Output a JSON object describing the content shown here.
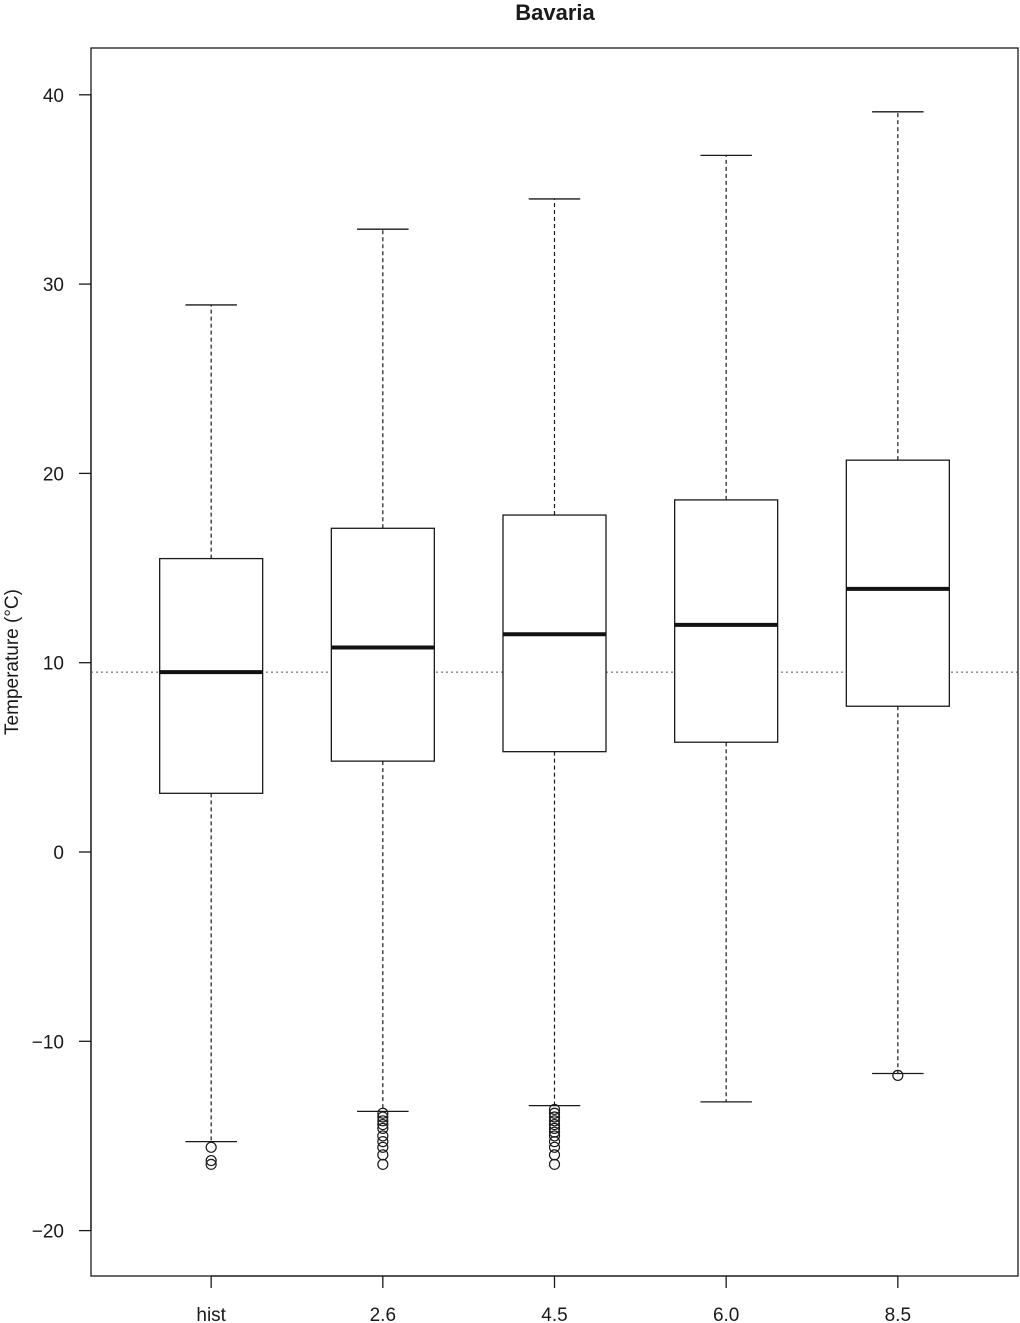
{
  "chart_data": {
    "type": "boxplot",
    "title": "Bavaria",
    "xlabel": "",
    "ylabel": "Temperature (°C)",
    "ylim": [
      -22.5,
      43.0
    ],
    "yticks": [
      -20,
      -10,
      0,
      10,
      20,
      30,
      40
    ],
    "reference_line": 9.5,
    "categories": [
      "hist",
      "2.6",
      "4.5",
      "6.0",
      "8.5"
    ],
    "boxes": [
      {
        "label": "hist",
        "whisker_low": -15.3,
        "q1": 3.1,
        "median": 9.5,
        "q3": 15.5,
        "whisker_high": 28.9,
        "outliers": [
          -15.6,
          -16.3,
          -16.5
        ]
      },
      {
        "label": "2.6",
        "whisker_low": -13.7,
        "q1": 4.8,
        "median": 10.8,
        "q3": 17.1,
        "whisker_high": 32.9,
        "outliers": [
          -13.8,
          -14.0,
          -14.2,
          -14.4,
          -14.6,
          -15.0,
          -15.3,
          -15.6,
          -16.0,
          -16.5
        ]
      },
      {
        "label": "4.5",
        "whisker_low": -13.4,
        "q1": 5.3,
        "median": 11.5,
        "q3": 17.8,
        "whisker_high": 34.5,
        "outliers": [
          -13.6,
          -13.8,
          -14.0,
          -14.2,
          -14.4,
          -14.6,
          -14.8,
          -15.0,
          -15.3,
          -15.6,
          -16.0,
          -16.5
        ]
      },
      {
        "label": "6.0",
        "whisker_low": -13.2,
        "q1": 5.8,
        "median": 12.0,
        "q3": 18.6,
        "whisker_high": 36.8
      },
      {
        "label": "8.5",
        "whisker_low": -11.7,
        "q1": 7.7,
        "median": 13.9,
        "q3": 20.7,
        "whisker_high": 39.1,
        "outliers": [
          -11.8
        ]
      }
    ]
  }
}
